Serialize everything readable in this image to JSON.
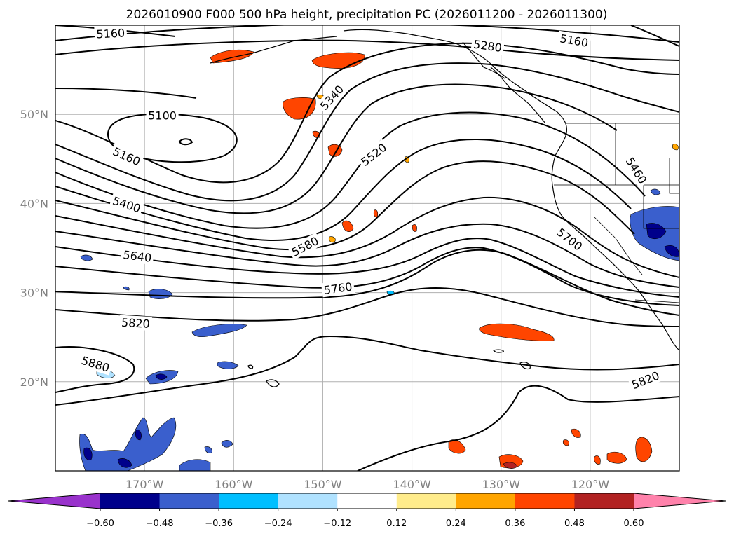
{
  "title": "2026010900 F000 500 hPa height, precipitation PC (2026011200 - 2026011300)",
  "map": {
    "projection": "plate-carree",
    "lon_range": [
      -180,
      -110
    ],
    "lat_range": [
      10,
      60
    ],
    "lat_ticks": [
      {
        "lat": 50,
        "label": "50°N"
      },
      {
        "lat": 40,
        "label": "40°N"
      },
      {
        "lat": 30,
        "label": "30°N"
      },
      {
        "lat": 20,
        "label": "20°N"
      }
    ],
    "lon_ticks": [
      {
        "lon": -170,
        "label": "170°W"
      },
      {
        "lon": -160,
        "label": "160°W"
      },
      {
        "lon": -150,
        "label": "150°W"
      },
      {
        "lon": -140,
        "label": "140°W"
      },
      {
        "lon": -130,
        "label": "130°W"
      },
      {
        "lon": -120,
        "label": "120°W"
      }
    ],
    "gridlines": true,
    "contour_color": "#000000",
    "contour_labels": [
      {
        "text": "5160",
        "lon": -173.8,
        "lat": 59.1,
        "angle": -3
      },
      {
        "text": "5100",
        "lon": -168.0,
        "lat": 49.9,
        "angle": 0
      },
      {
        "text": "5160",
        "lon": -172.0,
        "lat": 45.3,
        "angle": 24
      },
      {
        "text": "5400",
        "lon": -172.0,
        "lat": 39.9,
        "angle": 18
      },
      {
        "text": "5640",
        "lon": -170.8,
        "lat": 34.1,
        "angle": 7
      },
      {
        "text": "5820",
        "lon": -171.0,
        "lat": 26.6,
        "angle": 3
      },
      {
        "text": "5880",
        "lon": -175.5,
        "lat": 22.0,
        "angle": 17
      },
      {
        "text": "5340",
        "lon": -149.0,
        "lat": 51.9,
        "angle": -48
      },
      {
        "text": "5520",
        "lon": -144.3,
        "lat": 45.5,
        "angle": -38
      },
      {
        "text": "5580",
        "lon": -152.0,
        "lat": 35.2,
        "angle": -28
      },
      {
        "text": "5760",
        "lon": -148.3,
        "lat": 30.5,
        "angle": -8
      },
      {
        "text": "5280",
        "lon": -131.5,
        "lat": 57.7,
        "angle": 8
      },
      {
        "text": "5160",
        "lon": -121.8,
        "lat": 58.3,
        "angle": 10
      },
      {
        "text": "5460",
        "lon": -114.8,
        "lat": 43.7,
        "angle": 58
      },
      {
        "text": "5700",
        "lon": -122.3,
        "lat": 36.0,
        "angle": 38
      },
      {
        "text": "5820",
        "lon": -113.8,
        "lat": 20.2,
        "angle": -22
      }
    ],
    "precip_shaded": true
  },
  "colorbar": {
    "boundaries": [
      -0.6,
      -0.48,
      -0.36,
      -0.24,
      -0.12,
      0.12,
      0.24,
      0.36,
      0.48,
      0.6
    ],
    "tick_labels": [
      "−0.60",
      "−0.48",
      "−0.36",
      "−0.24",
      "−0.12",
      "0.12",
      "0.24",
      "0.36",
      "0.48",
      "0.60"
    ],
    "colors": [
      "#9932cc",
      "#00008b",
      "#3a5fcd",
      "#00bfff",
      "#b0e2ff",
      "#ffffff",
      "#ffec8b",
      "#ffa500",
      "#ff4500",
      "#b22222",
      "#ff82ab"
    ],
    "extend": "both"
  }
}
